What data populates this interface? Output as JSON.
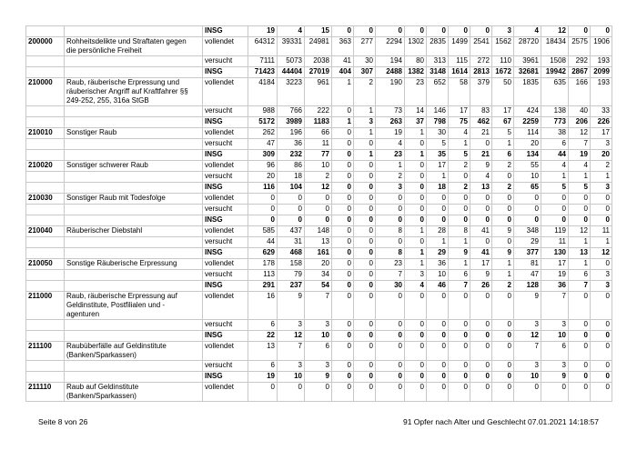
{
  "table": {
    "groups": [
      {
        "rows": [
          {
            "status": "INSG",
            "values": [
              19,
              4,
              15,
              0,
              0,
              0,
              0,
              0,
              0,
              0,
              3,
              4,
              12,
              0,
              0
            ]
          }
        ]
      },
      {
        "code": "200000",
        "label": "Rohheitsdelikte und Straftaten gegen die persönliche Freiheit",
        "rows": [
          {
            "status": "vollendet",
            "values": [
              64312,
              39331,
              24981,
              363,
              277,
              2294,
              1302,
              2835,
              1499,
              2541,
              1562,
              28720,
              18434,
              2575,
              1906
            ]
          },
          {
            "status": "versucht",
            "values": [
              7111,
              5073,
              2038,
              41,
              30,
              194,
              80,
              313,
              115,
              272,
              110,
              3961,
              1508,
              292,
              193
            ]
          },
          {
            "status": "INSG",
            "values": [
              71423,
              44404,
              27019,
              404,
              307,
              2488,
              1382,
              3148,
              1614,
              2813,
              1672,
              32681,
              19942,
              2867,
              2099
            ]
          }
        ]
      },
      {
        "code": "210000",
        "label": "Raub, räuberische Erpressung und räuberischer Angriff auf Kraftfahrer §§ 249-252, 255, 316a StGB",
        "rows": [
          {
            "status": "vollendet",
            "values": [
              4184,
              3223,
              961,
              1,
              2,
              190,
              23,
              652,
              58,
              379,
              50,
              1835,
              635,
              166,
              193
            ]
          },
          {
            "status": "versucht",
            "values": [
              988,
              766,
              222,
              0,
              1,
              73,
              14,
              146,
              17,
              83,
              17,
              424,
              138,
              40,
              33
            ]
          },
          {
            "status": "INSG",
            "values": [
              5172,
              3989,
              1183,
              1,
              3,
              263,
              37,
              798,
              75,
              462,
              67,
              2259,
              773,
              206,
              226
            ]
          }
        ]
      },
      {
        "code": "210010",
        "label": "Sonstiger Raub",
        "rows": [
          {
            "status": "vollendet",
            "values": [
              262,
              196,
              66,
              0,
              1,
              19,
              1,
              30,
              4,
              21,
              5,
              114,
              38,
              12,
              17
            ]
          },
          {
            "status": "versucht",
            "values": [
              47,
              36,
              11,
              0,
              0,
              4,
              0,
              5,
              1,
              0,
              1,
              20,
              6,
              7,
              3
            ]
          },
          {
            "status": "INSG",
            "values": [
              309,
              232,
              77,
              0,
              1,
              23,
              1,
              35,
              5,
              21,
              6,
              134,
              44,
              19,
              20
            ]
          }
        ]
      },
      {
        "code": "210020",
        "label": "Sonstiger schwerer Raub",
        "rows": [
          {
            "status": "vollendet",
            "values": [
              96,
              86,
              10,
              0,
              0,
              1,
              0,
              17,
              2,
              9,
              2,
              55,
              4,
              4,
              2
            ]
          },
          {
            "status": "versucht",
            "values": [
              20,
              18,
              2,
              0,
              0,
              2,
              0,
              1,
              0,
              4,
              0,
              10,
              1,
              1,
              1
            ]
          },
          {
            "status": "INSG",
            "values": [
              116,
              104,
              12,
              0,
              0,
              3,
              0,
              18,
              2,
              13,
              2,
              65,
              5,
              5,
              3
            ]
          }
        ]
      },
      {
        "code": "210030",
        "label": "Sonstiger Raub mit Todesfolge",
        "rows": [
          {
            "status": "vollendet",
            "values": [
              0,
              0,
              0,
              0,
              0,
              0,
              0,
              0,
              0,
              0,
              0,
              0,
              0,
              0,
              0
            ]
          },
          {
            "status": "versucht",
            "values": [
              0,
              0,
              0,
              0,
              0,
              0,
              0,
              0,
              0,
              0,
              0,
              0,
              0,
              0,
              0
            ]
          },
          {
            "status": "INSG",
            "values": [
              0,
              0,
              0,
              0,
              0,
              0,
              0,
              0,
              0,
              0,
              0,
              0,
              0,
              0,
              0
            ]
          }
        ]
      },
      {
        "code": "210040",
        "label": "Räuberischer Diebstahl",
        "rows": [
          {
            "status": "vollendet",
            "values": [
              585,
              437,
              148,
              0,
              0,
              8,
              1,
              28,
              8,
              41,
              9,
              348,
              119,
              12,
              11
            ]
          },
          {
            "status": "versucht",
            "values": [
              44,
              31,
              13,
              0,
              0,
              0,
              0,
              1,
              1,
              0,
              0,
              29,
              11,
              1,
              1
            ]
          },
          {
            "status": "INSG",
            "values": [
              629,
              468,
              161,
              0,
              0,
              8,
              1,
              29,
              9,
              41,
              9,
              377,
              130,
              13,
              12
            ]
          }
        ]
      },
      {
        "code": "210050",
        "label": "Sonstige Räuberische Erpressung",
        "rows": [
          {
            "status": "vollendet",
            "values": [
              178,
              158,
              20,
              0,
              0,
              23,
              1,
              36,
              1,
              17,
              1,
              81,
              17,
              1,
              0
            ]
          },
          {
            "status": "versucht",
            "values": [
              113,
              79,
              34,
              0,
              0,
              7,
              3,
              10,
              6,
              9,
              1,
              47,
              19,
              6,
              3
            ]
          },
          {
            "status": "INSG",
            "values": [
              291,
              237,
              54,
              0,
              0,
              30,
              4,
              46,
              7,
              26,
              2,
              128,
              36,
              7,
              3
            ]
          }
        ]
      },
      {
        "code": "211000",
        "label": "Raub, räuberische Erpressung auf Geldinstitute, Postfilialen und -agenturen",
        "rows": [
          {
            "status": "vollendet",
            "values": [
              16,
              9,
              7,
              0,
              0,
              0,
              0,
              0,
              0,
              0,
              0,
              9,
              7,
              0,
              0
            ]
          },
          {
            "status": "versucht",
            "values": [
              6,
              3,
              3,
              0,
              0,
              0,
              0,
              0,
              0,
              0,
              0,
              3,
              3,
              0,
              0
            ]
          },
          {
            "status": "INSG",
            "values": [
              22,
              12,
              10,
              0,
              0,
              0,
              0,
              0,
              0,
              0,
              0,
              12,
              10,
              0,
              0
            ]
          }
        ]
      },
      {
        "code": "211100",
        "label": "Raubüberfälle auf Geldinstitute (Banken/Sparkassen)",
        "rows": [
          {
            "status": "vollendet",
            "values": [
              13,
              7,
              6,
              0,
              0,
              0,
              0,
              0,
              0,
              0,
              0,
              7,
              6,
              0,
              0
            ]
          },
          {
            "status": "versucht",
            "values": [
              6,
              3,
              3,
              0,
              0,
              0,
              0,
              0,
              0,
              0,
              0,
              3,
              3,
              0,
              0
            ]
          },
          {
            "status": "INSG",
            "values": [
              19,
              10,
              9,
              0,
              0,
              0,
              0,
              0,
              0,
              0,
              0,
              10,
              9,
              0,
              0
            ]
          }
        ]
      },
      {
        "code": "211110",
        "label": "Raub auf Geldinstitute (Banken/Sparkassen)",
        "rows": [
          {
            "status": "vollendet",
            "values": [
              0,
              0,
              0,
              0,
              0,
              0,
              0,
              0,
              0,
              0,
              0,
              0,
              0,
              0,
              0
            ]
          }
        ]
      }
    ]
  },
  "footer": {
    "page": "Seite 8 von 26",
    "info": "91 Opfer nach Alter und Geschlecht  07.01.2021 14:18:57"
  }
}
